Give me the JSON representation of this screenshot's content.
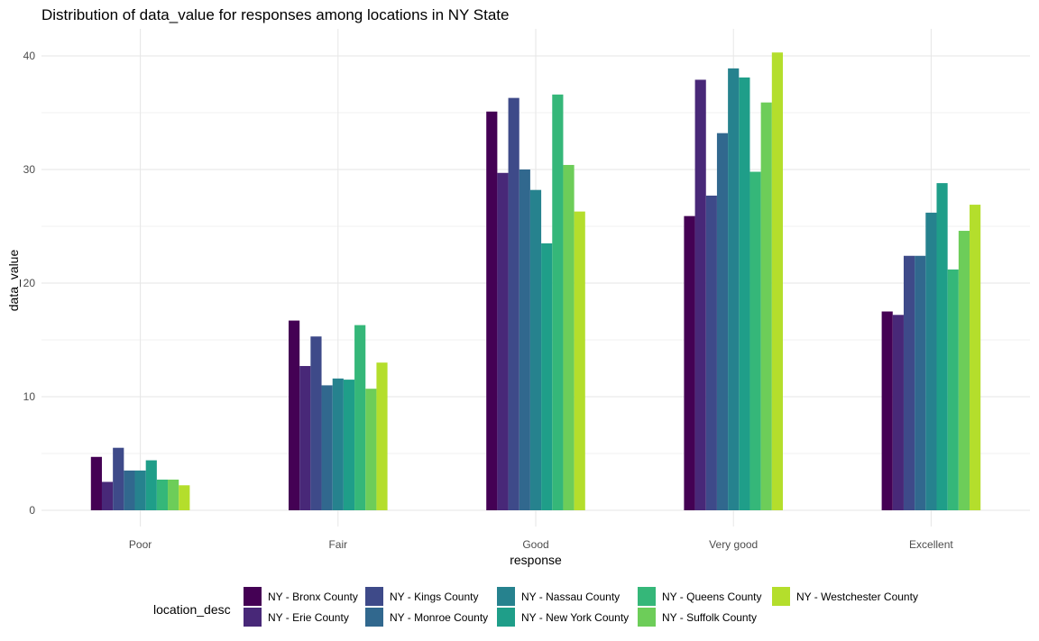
{
  "chart_data": {
    "type": "bar",
    "title": "Distribution of data_value for responses among locations in NY State",
    "xlabel": "response",
    "ylabel": "data_value",
    "ylim": [
      0,
      42
    ],
    "yticks": [
      0,
      10,
      20,
      30,
      40
    ],
    "grid": true,
    "legend": {
      "title": "location_desc",
      "position": "bottom"
    },
    "categories": [
      "Poor",
      "Fair",
      "Good",
      "Very good",
      "Excellent"
    ],
    "series": [
      {
        "name": "NY - Bronx County",
        "color": "#440154",
        "values": [
          4.7,
          16.7,
          35.1,
          25.9,
          17.5
        ]
      },
      {
        "name": "NY - Erie County",
        "color": "#482878",
        "values": [
          2.5,
          12.7,
          29.7,
          37.9,
          17.2
        ]
      },
      {
        "name": "NY - Kings County",
        "color": "#3E4A89",
        "values": [
          5.5,
          15.3,
          36.3,
          27.7,
          22.4
        ]
      },
      {
        "name": "NY - Monroe County",
        "color": "#31688E",
        "values": [
          3.5,
          11.0,
          30.0,
          33.2,
          22.4
        ]
      },
      {
        "name": "NY - Nassau County",
        "color": "#26828E",
        "values": [
          3.5,
          11.6,
          28.2,
          38.9,
          26.2
        ]
      },
      {
        "name": "NY - New York County",
        "color": "#1F9E89",
        "values": [
          4.4,
          11.5,
          23.5,
          38.1,
          28.8
        ]
      },
      {
        "name": "NY - Queens County",
        "color": "#35B779",
        "values": [
          2.7,
          16.3,
          36.6,
          29.8,
          21.2
        ]
      },
      {
        "name": "NY - Suffolk County",
        "color": "#6DCD59",
        "values": [
          2.7,
          10.7,
          30.4,
          35.9,
          24.6
        ]
      },
      {
        "name": "NY - Westchester County",
        "color": "#B4DE2C",
        "values": [
          2.2,
          13.0,
          26.3,
          40.3,
          26.9
        ]
      }
    ]
  }
}
